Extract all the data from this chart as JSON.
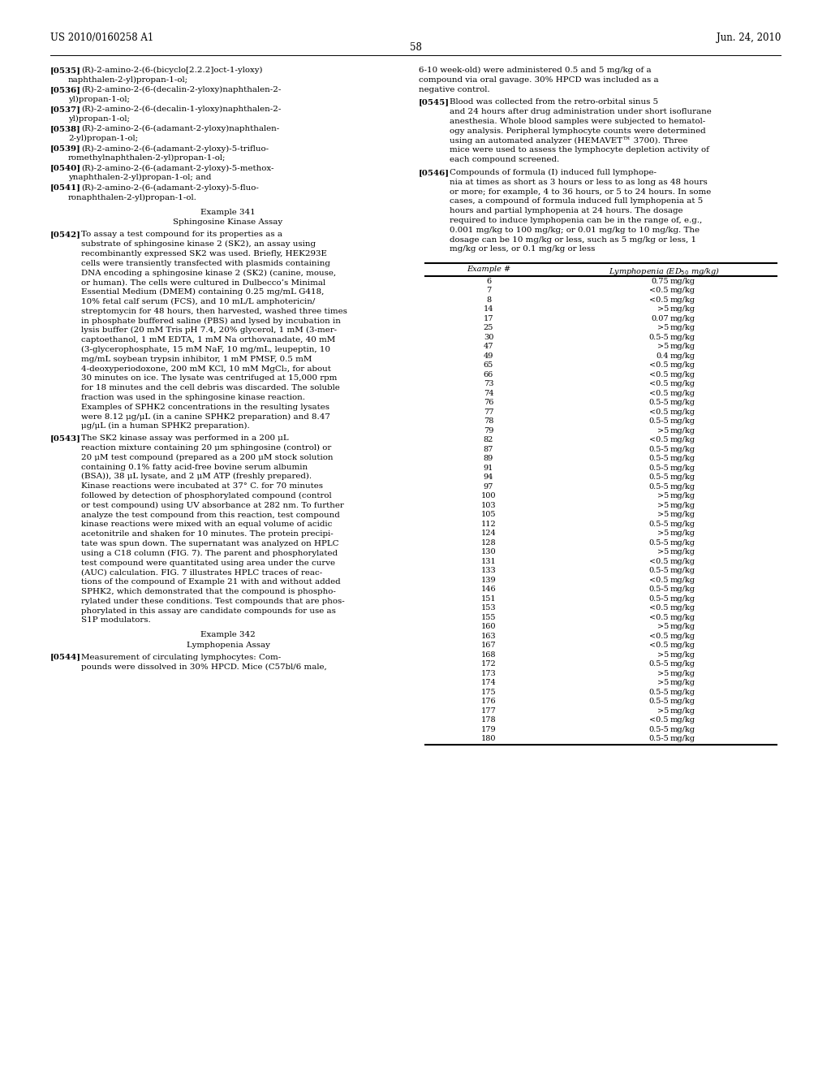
{
  "header_left": "US 2010/0160258 A1",
  "header_right": "Jun. 24, 2010",
  "page_number": "58",
  "background_color": "#ffffff",
  "left_paragraphs": [
    {
      "tag": "[0535]",
      "line1": "(R)-2-amino-2-(6-(bicyclo[2.2.2]oct-1-yloxy)",
      "line2": "naphthalen-2-yl)propan-1-ol;"
    },
    {
      "tag": "[0536]",
      "line1": "(R)-2-amino-2-(6-(decalin-2-yloxy)naphthalen-2-",
      "line2": "yl)propan-1-ol;"
    },
    {
      "tag": "[0537]",
      "line1": "(R)-2-amino-2-(6-(decalin-1-yloxy)naphthalen-2-",
      "line2": "yl)propan-1-ol;"
    },
    {
      "tag": "[0538]",
      "line1": "(R)-2-amino-2-(6-(adamant-2-yloxy)naphthalen-",
      "line2": "2-yl)propan-1-ol;"
    },
    {
      "tag": "[0539]",
      "line1": "(R)-2-amino-2-(6-(adamant-2-yloxy)-5-trifluo-",
      "line2": "romethylnaphthalen-2-yl)propan-1-ol;"
    },
    {
      "tag": "[0540]",
      "line1": "(R)-2-amino-2-(6-(adamant-2-yloxy)-5-methox-",
      "line2": "ynaphthalen-2-yl)propan-1-ol; and"
    },
    {
      "tag": "[0541]",
      "line1": "(R)-2-amino-2-(6-(adamant-2-yloxy)-5-fluo-",
      "line2": "ronaphthalen-2-yl)propan-1-ol."
    }
  ],
  "example_341_title": "Example 341",
  "example_341_subtitle": "Sphingosine Kinase Assay",
  "para_0542_tag": "[0542]",
  "para_0542_lines": [
    "To assay a test compound for its properties as a",
    "substrate of sphingosine kinase 2 (SK2), an assay using",
    "recombinantly expressed SK2 was used. Briefly, HEK293E",
    "cells were transiently transfected with plasmids containing",
    "DNA encoding a sphingosine kinase 2 (SK2) (canine, mouse,",
    "or human). The cells were cultured in Dulbecco’s Minimal",
    "Essential Medium (DMEM) containing 0.25 mg/mL G418,",
    "10% fetal calf serum (FCS), and 10 mL/L amphotericin/",
    "streptomycin for 48 hours, then harvested, washed three times",
    "in phosphate buffered saline (PBS) and lysed by incubation in",
    "lysis buffer (20 mM Tris pH 7.4, 20% glycerol, 1 mM (3-mer-",
    "captoethanol, 1 mM EDTA, 1 mM Na orthovanadate, 40 mM",
    "(3-glycerophosphate, 15 mM NaF, 10 mg/mL, leupeptin, 10",
    "mg/mL soybean trypsin inhibitor, 1 mM PMSF, 0.5 mM",
    "4-deoxyperiodoxone, 200 mM KCl, 10 mM MgCl₂, for about",
    "30 minutes on ice. The lysate was centrifuged at 15,000 rpm",
    "for 18 minutes and the cell debris was discarded. The soluble",
    "fraction was used in the sphingosine kinase reaction.",
    "Examples of SPHK2 concentrations in the resulting lysates",
    "were 8.12 μg/μL (in a canine SPHK2 preparation) and 8.47",
    "μg/μL (in a human SPHK2 preparation)."
  ],
  "para_0543_tag": "[0543]",
  "para_0543_lines": [
    "The SK2 kinase assay was performed in a 200 μL",
    "reaction mixture containing 20 μm sphingosine (control) or",
    "20 μM test compound (prepared as a 200 μM stock solution",
    "containing 0.1% fatty acid-free bovine serum albumin",
    "(BSA)), 38 μL lysate, and 2 μM ATP (freshly prepared).",
    "Kinase reactions were incubated at 37° C. for 70 minutes",
    "followed by detection of phosphorylated compound (control",
    "or test compound) using UV absorbance at 282 nm. To further",
    "analyze the test compound from this reaction, test compound",
    "kinase reactions were mixed with an equal volume of acidic",
    "acetonitrile and shaken for 10 minutes. The protein precipi-",
    "tate was spun down. The supernatant was analyzed on HPLC",
    "using a C18 column (FIG. 7). The parent and phosphorylated",
    "test compound were quantitated using area under the curve",
    "(AUC) calculation. FIG. 7 illustrates HPLC traces of reac-",
    "tions of the compound of Example 21 with and without added",
    "SPHK2, which demonstrated that the compound is phospho-",
    "rylated under these conditions. Test compounds that are phos-",
    "phorylated in this assay are candidate compounds for use as",
    "S1P modulators."
  ],
  "example_342_title": "Example 342",
  "example_342_subtitle": "Lymphopenia Assay",
  "para_0544_tag": "[0544]",
  "para_0544_lines": [
    "Measurement of circulating lymphocytes: Com-",
    "pounds were dissolved in 30% HPCD. Mice (C57bl/6 male,"
  ],
  "right_top_lines": [
    "6-10 week-old) were administered 0.5 and 5 mg/kg of a",
    "compound via oral gavage. 30% HPCD was included as a",
    "negative control."
  ],
  "para_0545_tag": "[0545]",
  "para_0545_lines": [
    "Blood was collected from the retro-orbital sinus 5",
    "and 24 hours after drug administration under short isoflurane",
    "anesthesia. Whole blood samples were subjected to hematol-",
    "ogy analysis. Peripheral lymphocyte counts were determined",
    "using an automated analyzer (HEMAVET™ 3700). Three",
    "mice were used to assess the lymphocyte depletion activity of",
    "each compound screened."
  ],
  "para_0546_tag": "[0546]",
  "para_0546_lines": [
    "Compounds of formula (I) induced full lymphope-",
    "nia at times as short as 3 hours or less to as long as 48 hours",
    "or more; for example, 4 to 36 hours, or 5 to 24 hours. In some",
    "cases, a compound of formula induced full lymphopenia at 5",
    "hours and partial lymphopenia at 24 hours. The dosage",
    "required to induce lymphopenia can be in the range of, e.g.,",
    "0.001 mg/kg to 100 mg/kg; or 0.01 mg/kg to 10 mg/kg. The",
    "dosage can be 10 mg/kg or less, such as 5 mg/kg or less, 1",
    "mg/kg or less, or 0.1 mg/kg or less"
  ],
  "table_data": [
    [
      "6",
      "0.75",
      "mg/kg"
    ],
    [
      "7",
      "<0.5",
      "mg/kg"
    ],
    [
      "8",
      "<0.5",
      "mg/kg"
    ],
    [
      "14",
      ">5",
      "mg/kg"
    ],
    [
      "17",
      "0.07",
      "mg/kg"
    ],
    [
      "25",
      ">5",
      "mg/kg"
    ],
    [
      "30",
      "0.5-5",
      "mg/kg"
    ],
    [
      "47",
      ">5",
      "mg/kg"
    ],
    [
      "49",
      "0.4",
      "mg/kg"
    ],
    [
      "65",
      "<0.5",
      "mg/kg"
    ],
    [
      "66",
      "<0.5",
      "mg/kg"
    ],
    [
      "73",
      "<0.5",
      "mg/kg"
    ],
    [
      "74",
      "<0.5",
      "mg/kg"
    ],
    [
      "76",
      "0.5-5",
      "mg/kg"
    ],
    [
      "77",
      "<0.5",
      "mg/kg"
    ],
    [
      "78",
      "0.5-5",
      "mg/kg"
    ],
    [
      "79",
      ">5",
      "mg/kg"
    ],
    [
      "82",
      "<0.5",
      "mg/kg"
    ],
    [
      "87",
      "0.5-5",
      "mg/kg"
    ],
    [
      "89",
      "0.5-5",
      "mg/kg"
    ],
    [
      "91",
      "0.5-5",
      "mg/kg"
    ],
    [
      "94",
      "0.5-5",
      "mg/kg"
    ],
    [
      "97",
      "0.5-5",
      "mg/kg"
    ],
    [
      "100",
      ">5",
      "mg/kg"
    ],
    [
      "103",
      ">5",
      "mg/kg"
    ],
    [
      "105",
      ">5",
      "mg/kg"
    ],
    [
      "112",
      "0.5-5",
      "mg/kg"
    ],
    [
      "124",
      ">5",
      "mg/kg"
    ],
    [
      "128",
      "0.5-5",
      "mg/kg"
    ],
    [
      "130",
      ">5",
      "mg/kg"
    ],
    [
      "131",
      "<0.5",
      "mg/kg"
    ],
    [
      "133",
      "0.5-5",
      "mg/kg"
    ],
    [
      "139",
      "<0.5",
      "mg/kg"
    ],
    [
      "146",
      "0.5-5",
      "mg/kg"
    ],
    [
      "151",
      "0.5-5",
      "mg/kg"
    ],
    [
      "153",
      "<0.5",
      "mg/kg"
    ],
    [
      "155",
      "<0.5",
      "mg/kg"
    ],
    [
      "160",
      ">5",
      "mg/kg"
    ],
    [
      "163",
      "<0.5",
      "mg/kg"
    ],
    [
      "167",
      "<0.5",
      "mg/kg"
    ],
    [
      "168",
      ">5",
      "mg/kg"
    ],
    [
      "172",
      "0.5-5",
      "mg/kg"
    ],
    [
      "173",
      ">5",
      "mg/kg"
    ],
    [
      "174",
      ">5",
      "mg/kg"
    ],
    [
      "175",
      "0.5-5",
      "mg/kg"
    ],
    [
      "176",
      "0.5-5",
      "mg/kg"
    ],
    [
      "177",
      ">5",
      "mg/kg"
    ],
    [
      "178",
      "<0.5",
      "mg/kg"
    ],
    [
      "179",
      "0.5-5",
      "mg/kg"
    ],
    [
      "180",
      "0.5-5",
      "mg/kg"
    ]
  ]
}
